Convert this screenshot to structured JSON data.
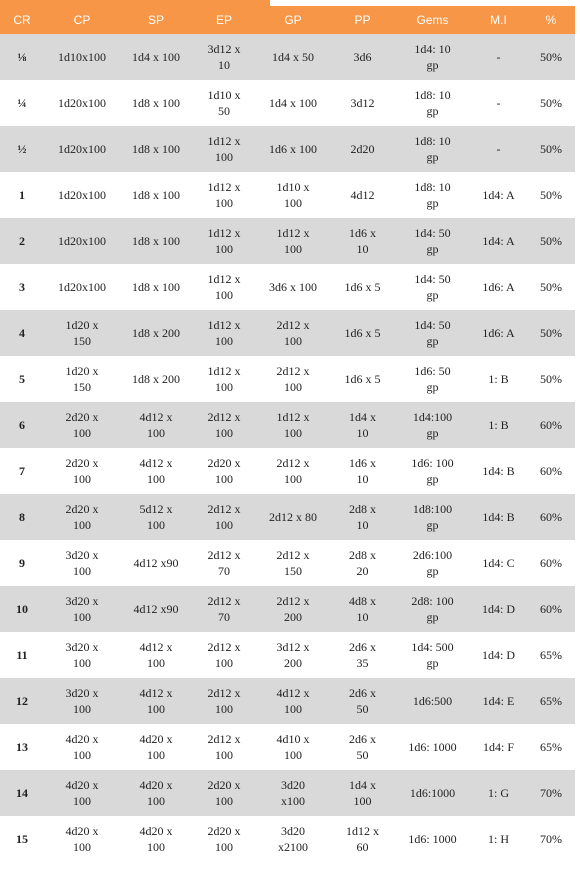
{
  "table": {
    "header": [
      "CR",
      "CP",
      "SP",
      "EP",
      "GP",
      "PP",
      "Gems",
      "M.I",
      "%"
    ],
    "rows": [
      [
        "⅛",
        "1d10x100",
        "1d4 x 100",
        "3d12 x 10",
        "1d4 x 50",
        "3d6",
        "1d4: 10 gp",
        "-",
        "50%"
      ],
      [
        "¼",
        "1d20x100",
        "1d8 x 100",
        "1d10 x 50",
        "1d4 x 100",
        "3d12",
        "1d8: 10 gp",
        "-",
        "50%"
      ],
      [
        "½",
        "1d20x100",
        "1d8 x 100",
        "1d12 x 100",
        "1d6 x 100",
        "2d20",
        "1d8: 10 gp",
        "-",
        "50%"
      ],
      [
        "1",
        "1d20x100",
        "1d8 x 100",
        "1d12 x 100",
        "1d10 x 100",
        "4d12",
        "1d8: 10 gp",
        "1d4: A",
        "50%"
      ],
      [
        "2",
        "1d20x100",
        "1d8 x 100",
        "1d12 x 100",
        "1d12 x 100",
        "1d6 x 10",
        "1d4: 50 gp",
        "1d4: A",
        "50%"
      ],
      [
        "3",
        "1d20x100",
        "1d8 x 100",
        "1d12 x 100",
        "3d6 x 100",
        "1d6 x 5",
        "1d4: 50 gp",
        "1d6: A",
        "50%"
      ],
      [
        "4",
        "1d20 x 150",
        "1d8 x 200",
        "1d12 x 100",
        "2d12 x 100",
        "1d6 x 5",
        "1d4: 50 gp",
        "1d6: A",
        "50%"
      ],
      [
        "5",
        "1d20 x 150",
        "1d8 x 200",
        "1d12 x 100",
        "2d12 x 100",
        "1d6 x 5",
        "1d6: 50 gp",
        "1: B",
        "50%"
      ],
      [
        "6",
        "2d20 x 100",
        "4d12 x 100",
        "2d12 x 100",
        "1d12 x 100",
        "1d4 x 10",
        "1d4:100 gp",
        "1: B",
        "60%"
      ],
      [
        "7",
        "2d20 x 100",
        "4d12 x 100",
        "2d20 x 100",
        "2d12 x 100",
        "1d6 x 10",
        "1d6: 100 gp",
        "1d4: B",
        "60%"
      ],
      [
        "8",
        "2d20 x 100",
        "5d12 x 100",
        "2d12 x 100",
        "2d12 x 80",
        "2d8 x 10",
        "1d8:100 gp",
        "1d4: B",
        "60%"
      ],
      [
        "9",
        "3d20 x 100",
        "4d12 x90",
        "2d12 x 70",
        "2d12 x 150",
        "2d8 x 20",
        "2d6:100 gp",
        "1d4: C",
        "60%"
      ],
      [
        "10",
        "3d20 x 100",
        "4d12 x90",
        "2d12 x 70",
        "2d12 x 200",
        "4d8 x 10",
        "2d8: 100 gp",
        "1d4: D",
        "60%"
      ],
      [
        "11",
        "3d20 x 100",
        "4d12 x 100",
        "2d12 x 100",
        "3d12 x 200",
        "2d6 x 35",
        "1d4: 500 gp",
        "1d4: D",
        "65%"
      ],
      [
        "12",
        "3d20 x 100",
        "4d12 x 100",
        "2d12 x 100",
        "4d12 x 100",
        "2d6 x 50",
        "1d6:500",
        "1d4: E",
        "65%"
      ],
      [
        "13",
        "4d20 x 100",
        "4d20 x 100",
        "2d12 x 100",
        "4d10 x 100",
        "2d6 x 50",
        "1d6: 1000",
        "1d4: F",
        "65%"
      ],
      [
        "14",
        "4d20 x 100",
        "4d20 x 100",
        "2d20 x 100",
        "3d20 x100",
        "1d4 x 100",
        "1d6:1000",
        "1: G",
        "70%"
      ],
      [
        "15",
        "4d20 x 100",
        "4d20 x 100",
        "2d20 x 100",
        "3d20 x2100",
        "1d12 x 60",
        "1d6: 1000",
        "1: H",
        "70%"
      ]
    ]
  }
}
